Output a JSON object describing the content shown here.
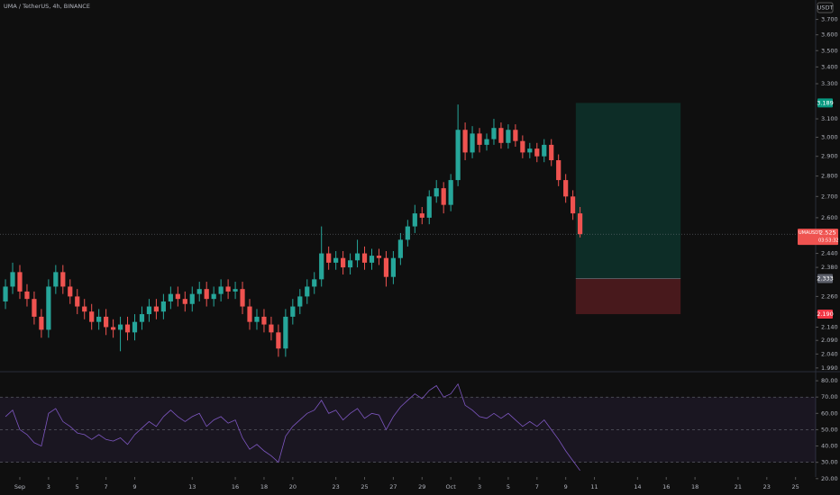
{
  "chart_data": {
    "type": "candlestick",
    "title": "UMA / TetherUS, 4h, BINANCE",
    "currency_label": "USDT",
    "log_scale": true,
    "up_color": "#26a69a",
    "down_color": "#ef5350",
    "x": [
      -1,
      -0.5,
      0,
      0.5,
      1,
      1.5,
      2,
      2.5,
      3,
      3.5,
      4,
      4.5,
      5,
      5.5,
      6,
      6.5,
      7,
      7.5,
      8,
      8.5,
      9,
      9.5,
      10,
      10.5,
      11,
      11.5,
      12,
      12.5,
      13,
      13.5,
      14,
      14.5,
      15,
      15.5,
      16,
      16.5,
      17,
      17.5,
      18,
      18.5,
      19,
      19.5,
      20,
      20.5,
      21,
      21.5,
      22,
      22.5,
      23,
      23.5,
      24,
      24.5,
      25,
      25.5,
      26,
      26.5,
      27,
      27.5,
      28,
      28.5,
      29,
      29.5,
      30,
      30.5,
      31,
      31.5,
      32,
      32.5,
      33,
      33.5,
      34,
      34.5,
      35,
      35.5,
      36,
      36.5,
      37,
      37.5,
      38,
      38.5,
      39
    ],
    "open": [
      2.24,
      2.3,
      2.36,
      2.28,
      2.25,
      2.18,
      2.13,
      2.3,
      2.36,
      2.3,
      2.26,
      2.22,
      2.2,
      2.16,
      2.18,
      2.14,
      2.13,
      2.15,
      2.12,
      2.16,
      2.19,
      2.22,
      2.2,
      2.24,
      2.27,
      2.25,
      2.23,
      2.27,
      2.29,
      2.25,
      2.27,
      2.3,
      2.28,
      2.29,
      2.22,
      2.16,
      2.18,
      2.15,
      2.12,
      2.06,
      2.18,
      2.22,
      2.26,
      2.3,
      2.33,
      2.44,
      2.4,
      2.42,
      2.38,
      2.41,
      2.44,
      2.4,
      2.43,
      2.42,
      2.34,
      2.42,
      2.5,
      2.56,
      2.62,
      2.6,
      2.7,
      2.74,
      2.66,
      2.78,
      3.04,
      2.92,
      3.02,
      2.96,
      2.99,
      3.05,
      2.97,
      3.04,
      2.98,
      2.92,
      2.94,
      2.9,
      2.96,
      2.88,
      2.78,
      2.7,
      2.62
    ],
    "high": [
      2.33,
      2.4,
      2.39,
      2.31,
      2.28,
      2.21,
      2.33,
      2.39,
      2.39,
      2.33,
      2.29,
      2.25,
      2.23,
      2.21,
      2.21,
      2.17,
      2.18,
      2.18,
      2.19,
      2.22,
      2.25,
      2.25,
      2.27,
      2.3,
      2.3,
      2.28,
      2.3,
      2.32,
      2.32,
      2.3,
      2.33,
      2.33,
      2.32,
      2.32,
      2.25,
      2.21,
      2.21,
      2.18,
      2.15,
      2.21,
      2.25,
      2.29,
      2.33,
      2.36,
      2.56,
      2.47,
      2.45,
      2.45,
      2.44,
      2.5,
      2.47,
      2.46,
      2.46,
      2.45,
      2.45,
      2.53,
      2.59,
      2.66,
      2.65,
      2.73,
      2.78,
      2.77,
      2.81,
      3.18,
      3.08,
      3.06,
      3.05,
      3.02,
      3.1,
      3.08,
      3.07,
      3.07,
      3.01,
      2.97,
      2.97,
      2.99,
      2.99,
      2.91,
      2.81,
      2.73,
      2.65
    ],
    "low": [
      2.21,
      2.27,
      2.25,
      2.22,
      2.15,
      2.1,
      2.1,
      2.27,
      2.27,
      2.23,
      2.19,
      2.17,
      2.13,
      2.13,
      2.11,
      2.1,
      2.05,
      2.09,
      2.09,
      2.13,
      2.16,
      2.17,
      2.17,
      2.21,
      2.22,
      2.2,
      2.2,
      2.24,
      2.22,
      2.22,
      2.24,
      2.25,
      2.25,
      2.19,
      2.13,
      2.13,
      2.12,
      2.09,
      2.03,
      2.03,
      2.15,
      2.19,
      2.23,
      2.27,
      2.3,
      2.37,
      2.37,
      2.35,
      2.35,
      2.38,
      2.37,
      2.37,
      2.39,
      2.3,
      2.31,
      2.39,
      2.47,
      2.53,
      2.57,
      2.57,
      2.67,
      2.62,
      2.63,
      2.75,
      2.88,
      2.89,
      2.92,
      2.93,
      2.96,
      2.94,
      2.94,
      2.95,
      2.89,
      2.89,
      2.87,
      2.87,
      2.85,
      2.75,
      2.67,
      2.59,
      2.51
    ],
    "close": [
      2.3,
      2.36,
      2.28,
      2.25,
      2.18,
      2.13,
      2.3,
      2.36,
      2.3,
      2.26,
      2.22,
      2.2,
      2.16,
      2.18,
      2.14,
      2.13,
      2.15,
      2.12,
      2.16,
      2.19,
      2.22,
      2.2,
      2.24,
      2.27,
      2.25,
      2.23,
      2.27,
      2.29,
      2.25,
      2.27,
      2.3,
      2.28,
      2.29,
      2.22,
      2.16,
      2.18,
      2.15,
      2.12,
      2.06,
      2.18,
      2.22,
      2.26,
      2.3,
      2.33,
      2.44,
      2.4,
      2.42,
      2.38,
      2.41,
      2.44,
      2.4,
      2.43,
      2.42,
      2.34,
      2.42,
      2.5,
      2.56,
      2.62,
      2.6,
      2.7,
      2.74,
      2.66,
      2.78,
      3.04,
      2.92,
      3.02,
      2.96,
      2.99,
      3.05,
      2.97,
      3.04,
      2.98,
      2.92,
      2.94,
      2.9,
      2.96,
      2.88,
      2.78,
      2.7,
      2.62,
      2.525
    ],
    "xlim": [
      -1.38,
      55.4
    ],
    "xticks": [
      {
        "value": 0,
        "label": "Sep"
      },
      {
        "value": 2,
        "label": "3"
      },
      {
        "value": 4,
        "label": "5"
      },
      {
        "value": 6,
        "label": "7"
      },
      {
        "value": 8,
        "label": "9"
      },
      {
        "value": 12,
        "label": "13"
      },
      {
        "value": 15,
        "label": "16"
      },
      {
        "value": 17,
        "label": "18"
      },
      {
        "value": 19,
        "label": "20"
      },
      {
        "value": 22,
        "label": "23"
      },
      {
        "value": 24,
        "label": "25"
      },
      {
        "value": 26,
        "label": "27"
      },
      {
        "value": 28,
        "label": "29"
      },
      {
        "value": 30,
        "label": "Oct"
      },
      {
        "value": 32,
        "label": "3"
      },
      {
        "value": 34,
        "label": "5"
      },
      {
        "value": 36,
        "label": "7"
      },
      {
        "value": 38,
        "label": "9"
      },
      {
        "value": 40,
        "label": "11"
      },
      {
        "value": 43,
        "label": "14"
      },
      {
        "value": 45,
        "label": "16"
      },
      {
        "value": 47,
        "label": "18"
      },
      {
        "value": 50,
        "label": "21"
      },
      {
        "value": 52,
        "label": "23"
      },
      {
        "value": 54,
        "label": "25"
      }
    ],
    "ylim": [
      1.98,
      3.83
    ],
    "yticks": [
      {
        "value": 3.7,
        "label": "3.700"
      },
      {
        "value": 3.6,
        "label": "3.600"
      },
      {
        "value": 3.5,
        "label": "3.500"
      },
      {
        "value": 3.4,
        "label": "3.400"
      },
      {
        "value": 3.3,
        "label": "3.300"
      },
      {
        "value": 3.1,
        "label": "3.100"
      },
      {
        "value": 3.0,
        "label": "3.000"
      },
      {
        "value": 2.9,
        "label": "2.900"
      },
      {
        "value": 2.8,
        "label": "2.800"
      },
      {
        "value": 2.7,
        "label": "2.700"
      },
      {
        "value": 2.6,
        "label": "2.600"
      },
      {
        "value": 2.44,
        "label": "2.440"
      },
      {
        "value": 2.38,
        "label": "2.380"
      },
      {
        "value": 2.26,
        "label": "2.260"
      },
      {
        "value": 2.14,
        "label": "2.140"
      },
      {
        "value": 2.09,
        "label": "2.090"
      },
      {
        "value": 2.04,
        "label": "2.040"
      },
      {
        "value": 1.99,
        "label": "1.990"
      }
    ],
    "current_price": {
      "symbol": "UMAUSDT",
      "value": 2.525,
      "countdown": "03:53:32"
    },
    "position": {
      "start": 38.7,
      "end": 46,
      "target": 3.189,
      "entry": {
        "value": 2.333,
        "label": "2.333"
      },
      "stop": {
        "value": 2.19,
        "label": "2.190"
      }
    },
    "rsi": {
      "color": "#7e57c2",
      "values": [
        58,
        62,
        50,
        47,
        42,
        40,
        60,
        63,
        55,
        52,
        48,
        47,
        44,
        47,
        44,
        43,
        45,
        41,
        47,
        51,
        55,
        52,
        58,
        62,
        58,
        55,
        58,
        60,
        52,
        56,
        58,
        54,
        56,
        45,
        38,
        41,
        37,
        34,
        30,
        46,
        52,
        56,
        60,
        62,
        68,
        60,
        62,
        56,
        60,
        63,
        57,
        60,
        59,
        50,
        58,
        64,
        68,
        72,
        69,
        74,
        77,
        70,
        72,
        78,
        65,
        62,
        58,
        57,
        60,
        57,
        60,
        56,
        52,
        55,
        52,
        56,
        50,
        44,
        37,
        31,
        25
      ],
      "ylim": [
        21,
        85
      ],
      "yticks": [
        {
          "value": 80,
          "label": "80.00"
        },
        {
          "value": 70,
          "label": "70.00"
        },
        {
          "value": 60,
          "label": "60.00"
        },
        {
          "value": 50,
          "label": "50.00"
        },
        {
          "value": 40,
          "label": "40.00"
        },
        {
          "value": 30,
          "label": "30.00"
        },
        {
          "value": 20,
          "label": "20.00"
        }
      ],
      "levels": [
        70,
        50,
        30
      ]
    }
  }
}
